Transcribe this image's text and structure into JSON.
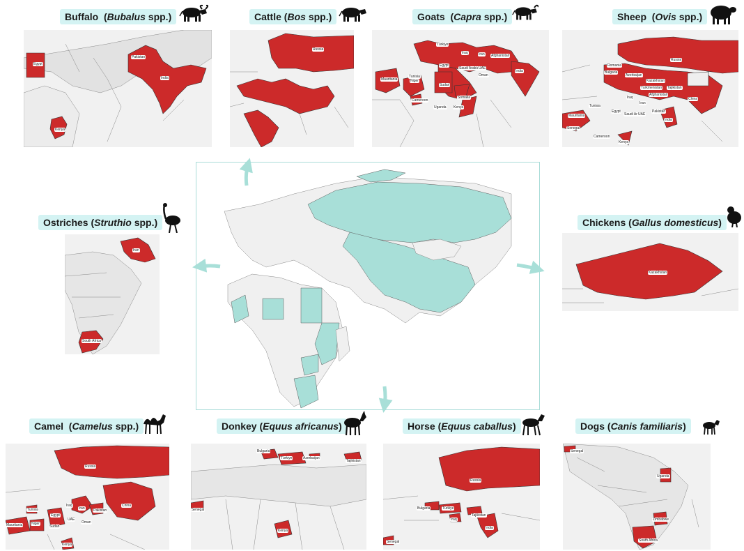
{
  "colors": {
    "highlight": "#cc2a2a",
    "teal": "#a8dfd8",
    "land": "#efefef",
    "border": "#555555",
    "title_bg": "#d4f3f3"
  },
  "panels": {
    "buffalo": {
      "common": "Buffalo",
      "sci": "Bubalus",
      "suffix": "spp.)",
      "icon": "buffalo-icon",
      "countries": [
        "Egypt",
        "Pakistan",
        "India",
        "Kenya"
      ]
    },
    "cattle": {
      "common": "Cattle",
      "sci": "Bos",
      "suffix": "spp.)",
      "icon": "cow-icon",
      "countries": [
        "Russia"
      ]
    },
    "goats": {
      "common": "Goats",
      "sci": "Capra",
      "suffix": "spp.)",
      "icon": "goat-icon",
      "countries": [
        "Tunisia",
        "Türkiye",
        "Iraq",
        "Iran",
        "Afghanistan",
        "Egypt",
        "Saudi Arabia",
        "UAE",
        "Oman",
        "India",
        "Mauritania",
        "Niger",
        "Sudan",
        "Cameroon",
        "Somalia",
        "Uganda",
        "Kenya"
      ]
    },
    "sheep": {
      "common": "Sheep",
      "sci": "Ovis",
      "suffix": "spp.)",
      "icon": "sheep-icon",
      "countries": [
        "Russia",
        "Romania",
        "Kazakhstan",
        "Bulgaria",
        "Azerbaijan",
        "Turkmenistan",
        "Tajikistan",
        "Tunisia",
        "Iraq",
        "Afghanistan",
        "China",
        "Iran",
        "Egypt",
        "Saudi Arabia",
        "UAE",
        "Pakistan",
        "India",
        "Mauritania",
        "Senegal",
        "Cameroon",
        "Kenya"
      ]
    },
    "ostriches": {
      "common": "Ostriches",
      "sci": "Struthio",
      "suffix": "spp.)",
      "icon": "ostrich-icon",
      "countries": [
        "Iran",
        "South Africa"
      ]
    },
    "chickens": {
      "common": "Chickens",
      "sci": "Gallus domesticus",
      "suffix": ")",
      "icon": "chicken-icon",
      "countries": [
        "Kazakhstan"
      ]
    },
    "camel": {
      "common": "Camel",
      "sci": "Camelus",
      "suffix": "spp.)",
      "icon": "camel-icon",
      "countries": [
        "Russia",
        "Tunisia",
        "Iraq",
        "Iran",
        "Egypt",
        "Pakistan",
        "China",
        "Mauritania",
        "Niger",
        "Sudan",
        "UAE",
        "Oman",
        "Kenya"
      ]
    },
    "donkey": {
      "common": "Donkey",
      "sci": "Equus africanus",
      "suffix": ")",
      "icon": "donkey-icon",
      "countries": [
        "Bulgaria",
        "Türkiye",
        "Azerbaijan",
        "Tajikistan",
        "Senegal",
        "Kenya"
      ]
    },
    "horse": {
      "common": "Horse",
      "sci": "Equus caballus",
      "suffix": ")",
      "icon": "horse-icon",
      "countries": [
        "Russia",
        "Bulgaria",
        "Türkiye",
        "Tajikistan",
        "Iraq",
        "India",
        "Senegal"
      ]
    },
    "dogs": {
      "common": "Dogs",
      "sci": "Canis familiaris",
      "suffix": ")",
      "icon": "dog-icon",
      "countries": [
        "Senegal",
        "Uganda",
        "Zimbabwe",
        "South Africa"
      ]
    }
  },
  "central_map": {
    "highlight_color": "#a8dfd8"
  },
  "arrows": [
    "arrow-up-icon",
    "arrow-left-icon",
    "arrow-right-icon",
    "arrow-down-icon"
  ]
}
